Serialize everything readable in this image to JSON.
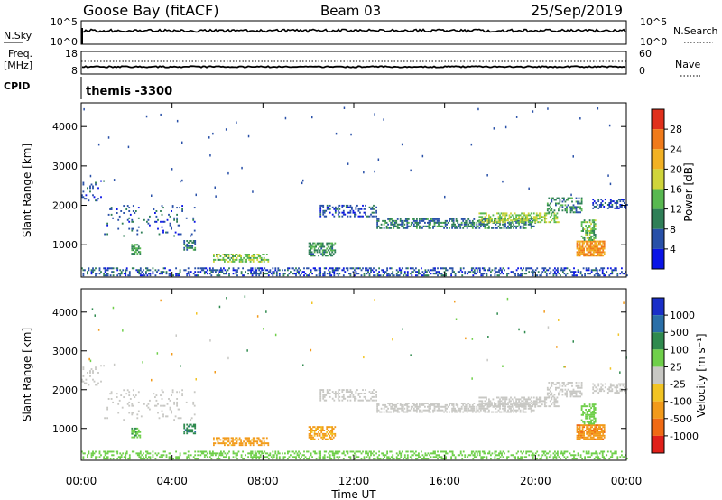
{
  "header": {
    "station": "Goose Bay (fitACF)",
    "beam": "Beam 03",
    "date": "25/Sep/2019"
  },
  "noise_panel": {
    "left_label": "N.Sky",
    "left_ticks": [
      "10^5",
      "10^0"
    ],
    "right_ticks": [
      "10^5",
      "10^0"
    ],
    "right_label": "N.Search"
  },
  "freq_panel": {
    "left_label_top": "Freq.",
    "left_label_unit": "[MHz]",
    "left_ticks": [
      "18",
      "8"
    ],
    "right_ticks": [
      "60",
      "0"
    ],
    "right_label": "Nave"
  },
  "cpid_panel": {
    "label": "CPID",
    "value": "themis -3300"
  },
  "axes": {
    "xlabel": "Time UT",
    "ylabel": "Slant Range [km]",
    "x_ticks": [
      "00:00",
      "04:00",
      "08:00",
      "12:00",
      "16:00",
      "20:00",
      "00:00"
    ],
    "y_ticks": [
      "1000",
      "2000",
      "3000",
      "4000"
    ]
  },
  "colorbars": {
    "power": {
      "label": "Power [dB]",
      "ticks": [
        "4",
        "8",
        "12",
        "16",
        "20",
        "24",
        "28"
      ],
      "colors": [
        "#0a14e6",
        "#2850a8",
        "#2f7f57",
        "#58b850",
        "#cfd43a",
        "#f2b124",
        "#f07a1a",
        "#e0301c"
      ]
    },
    "velocity": {
      "label": "Velocity [m s⁻¹]",
      "ticks": [
        "1000",
        "500",
        "100",
        "25",
        "-25",
        "-100",
        "-500",
        "-1000"
      ],
      "colors": [
        "#1a2fc8",
        "#2a6fa8",
        "#2f8a4e",
        "#6fcf4a",
        "#c8c8c4",
        "#f2c424",
        "#f29a1a",
        "#f06a14",
        "#e0201a"
      ]
    }
  },
  "chart_data": [
    {
      "type": "scatter",
      "title": "Power [dB]",
      "xlabel": "Time UT",
      "ylabel": "Slant Range [km]",
      "xlim": [
        0,
        24
      ],
      "ylim": [
        180,
        4600
      ],
      "value_range": [
        0,
        30
      ],
      "regions": [
        {
          "t": [
            0.0,
            24.0
          ],
          "r": [
            200,
            420
          ],
          "value": 6,
          "density": 0.35
        },
        {
          "t": [
            2.2,
            2.6
          ],
          "r": [
            750,
            1000
          ],
          "value": 12,
          "density": 0.6
        },
        {
          "t": [
            4.5,
            5.0
          ],
          "r": [
            850,
            1100
          ],
          "value": 10,
          "density": 0.6
        },
        {
          "t": [
            5.8,
            8.2
          ],
          "r": [
            550,
            750
          ],
          "value": 15,
          "density": 0.55
        },
        {
          "t": [
            10.0,
            11.2
          ],
          "r": [
            700,
            1050
          ],
          "value": 11,
          "density": 0.6
        },
        {
          "t": [
            13.0,
            20.0
          ],
          "r": [
            1400,
            1650
          ],
          "value": 9,
          "density": 0.55
        },
        {
          "t": [
            17.5,
            21.0
          ],
          "r": [
            1550,
            1800
          ],
          "value": 16,
          "density": 0.5
        },
        {
          "t": [
            20.5,
            22.0
          ],
          "r": [
            1800,
            2200
          ],
          "value": 10,
          "density": 0.4
        },
        {
          "t": [
            21.8,
            23.0
          ],
          "r": [
            700,
            1100
          ],
          "value": 24,
          "density": 0.8
        },
        {
          "t": [
            22.0,
            22.6
          ],
          "r": [
            1100,
            1600
          ],
          "value": 14,
          "density": 0.55
        },
        {
          "t": [
            10.5,
            13.0
          ],
          "r": [
            1700,
            2000
          ],
          "value": 6,
          "density": 0.35
        },
        {
          "t": [
            22.5,
            24.0
          ],
          "r": [
            1900,
            2150
          ],
          "value": 6,
          "density": 0.4
        },
        {
          "t": [
            0.0,
            1.0
          ],
          "r": [
            2100,
            2600
          ],
          "value": 5,
          "density": 0.2
        },
        {
          "t": [
            1.0,
            5.0
          ],
          "r": [
            1200,
            2000
          ],
          "value": 6,
          "density": 0.08
        }
      ]
    },
    {
      "type": "scatter",
      "title": "Velocity [m s⁻¹]",
      "xlabel": "Time UT",
      "ylabel": "Slant Range [km]",
      "xlim": [
        0,
        24
      ],
      "ylim": [
        180,
        4600
      ],
      "value_range": [
        -1000,
        1000
      ],
      "regions": [
        {
          "t": [
            0.0,
            24.0
          ],
          "r": [
            200,
            420
          ],
          "value": 60,
          "density": 0.35
        },
        {
          "t": [
            2.2,
            2.6
          ],
          "r": [
            750,
            1000
          ],
          "value": 80,
          "density": 0.6
        },
        {
          "t": [
            4.5,
            5.0
          ],
          "r": [
            850,
            1100
          ],
          "value": 400,
          "density": 0.6
        },
        {
          "t": [
            5.8,
            8.2
          ],
          "r": [
            550,
            750
          ],
          "value": -150,
          "density": 0.55
        },
        {
          "t": [
            10.0,
            11.2
          ],
          "r": [
            700,
            1050
          ],
          "value": -120,
          "density": 0.6
        },
        {
          "t": [
            13.0,
            20.0
          ],
          "r": [
            1400,
            1650
          ],
          "value": 0,
          "density": 0.55
        },
        {
          "t": [
            17.5,
            21.0
          ],
          "r": [
            1550,
            1800
          ],
          "value": 0,
          "density": 0.5
        },
        {
          "t": [
            20.5,
            22.0
          ],
          "r": [
            1800,
            2200
          ],
          "value": 0,
          "density": 0.4
        },
        {
          "t": [
            21.8,
            23.0
          ],
          "r": [
            700,
            1100
          ],
          "value": -400,
          "density": 0.8
        },
        {
          "t": [
            22.0,
            22.6
          ],
          "r": [
            1100,
            1600
          ],
          "value": 60,
          "density": 0.55
        },
        {
          "t": [
            10.5,
            13.0
          ],
          "r": [
            1700,
            2000
          ],
          "value": 0,
          "density": 0.35
        },
        {
          "t": [
            22.5,
            24.0
          ],
          "r": [
            1900,
            2150
          ],
          "value": 0,
          "density": 0.4
        },
        {
          "t": [
            0.0,
            1.0
          ],
          "r": [
            2100,
            2600
          ],
          "value": 0,
          "density": 0.2
        },
        {
          "t": [
            1.0,
            5.0
          ],
          "r": [
            1200,
            2000
          ],
          "value": 0,
          "density": 0.08
        }
      ]
    }
  ]
}
